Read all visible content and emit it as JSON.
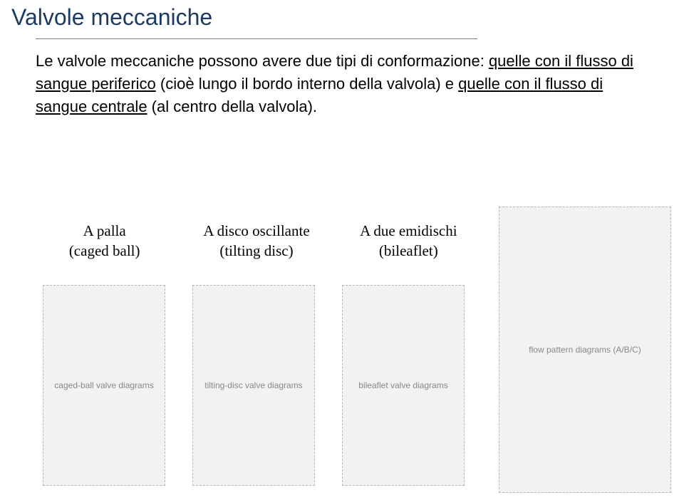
{
  "title": "Valvole meccaniche",
  "body": {
    "l1a": "Le valvole meccaniche possono avere due tipi di conformazione: ",
    "l1u": "quelle con il flusso di sangue periferico",
    "l1b": " (cioè lungo il bordo interno della valvola) e ",
    "l1u2": "quelle con il flusso di sangue centrale",
    "l1c": " (al centro della valvola)."
  },
  "labels": {
    "col1_line1": "A palla",
    "col1_line2": "(caged ball)",
    "col2_line1": "A disco oscillante",
    "col2_line2": "(tilting disc)",
    "col3_line1": "A due emidischi",
    "col3_line2": "(bileaflet)"
  },
  "placeholders": {
    "v1": "caged-ball valve diagrams",
    "v2": "tilting-disc valve diagrams",
    "v3": "bileaflet valve diagrams",
    "flow": "flow pattern diagrams (A/B/C)"
  }
}
